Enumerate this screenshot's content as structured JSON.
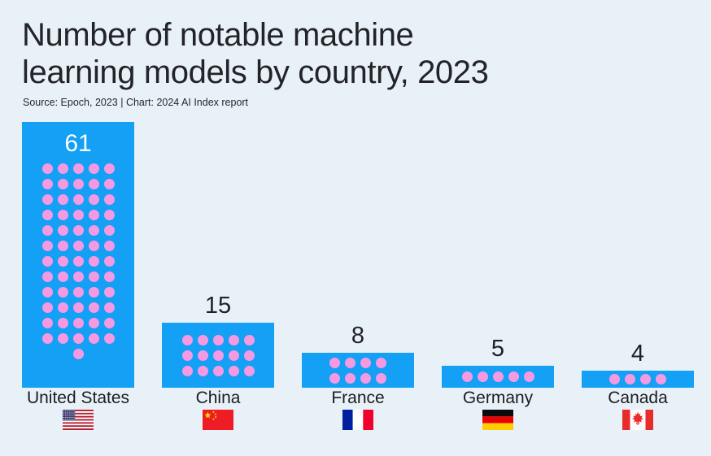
{
  "header": {
    "title_lines": [
      "Number of notable machine",
      "learning models by country, 2023"
    ],
    "source": "Source: Epoch, 2023 | Chart: 2024 AI Index report"
  },
  "chart_data": {
    "type": "bar",
    "style": "waffle-dot-bars",
    "title": "Number of notable machine learning models by country, 2023",
    "source": "Source: Epoch, 2023 | Chart: 2024 AI Index report",
    "categories": [
      "United States",
      "China",
      "France",
      "Germany",
      "Canada"
    ],
    "values": [
      61,
      15,
      8,
      5,
      4
    ],
    "value_labels": [
      "61",
      "15",
      "8",
      "5",
      "4"
    ],
    "value_label_positions": [
      "inside-top",
      "above",
      "above",
      "above",
      "above"
    ],
    "dot_columns": [
      5,
      5,
      4,
      5,
      4
    ],
    "flags": [
      "us",
      "cn",
      "fr",
      "de",
      "ca"
    ],
    "xlabel": "",
    "ylabel": "",
    "ylim": [
      0,
      61
    ],
    "grid": false,
    "legend": false,
    "axes_shown": false
  },
  "colors": {
    "background": "#e9f1f8",
    "bar": "#14a0f5",
    "dot": "#f59ae2",
    "title": "#232428",
    "value_label": "#202124",
    "value_label_inside": "#ffffff",
    "country_label": "#1c1d1f"
  }
}
